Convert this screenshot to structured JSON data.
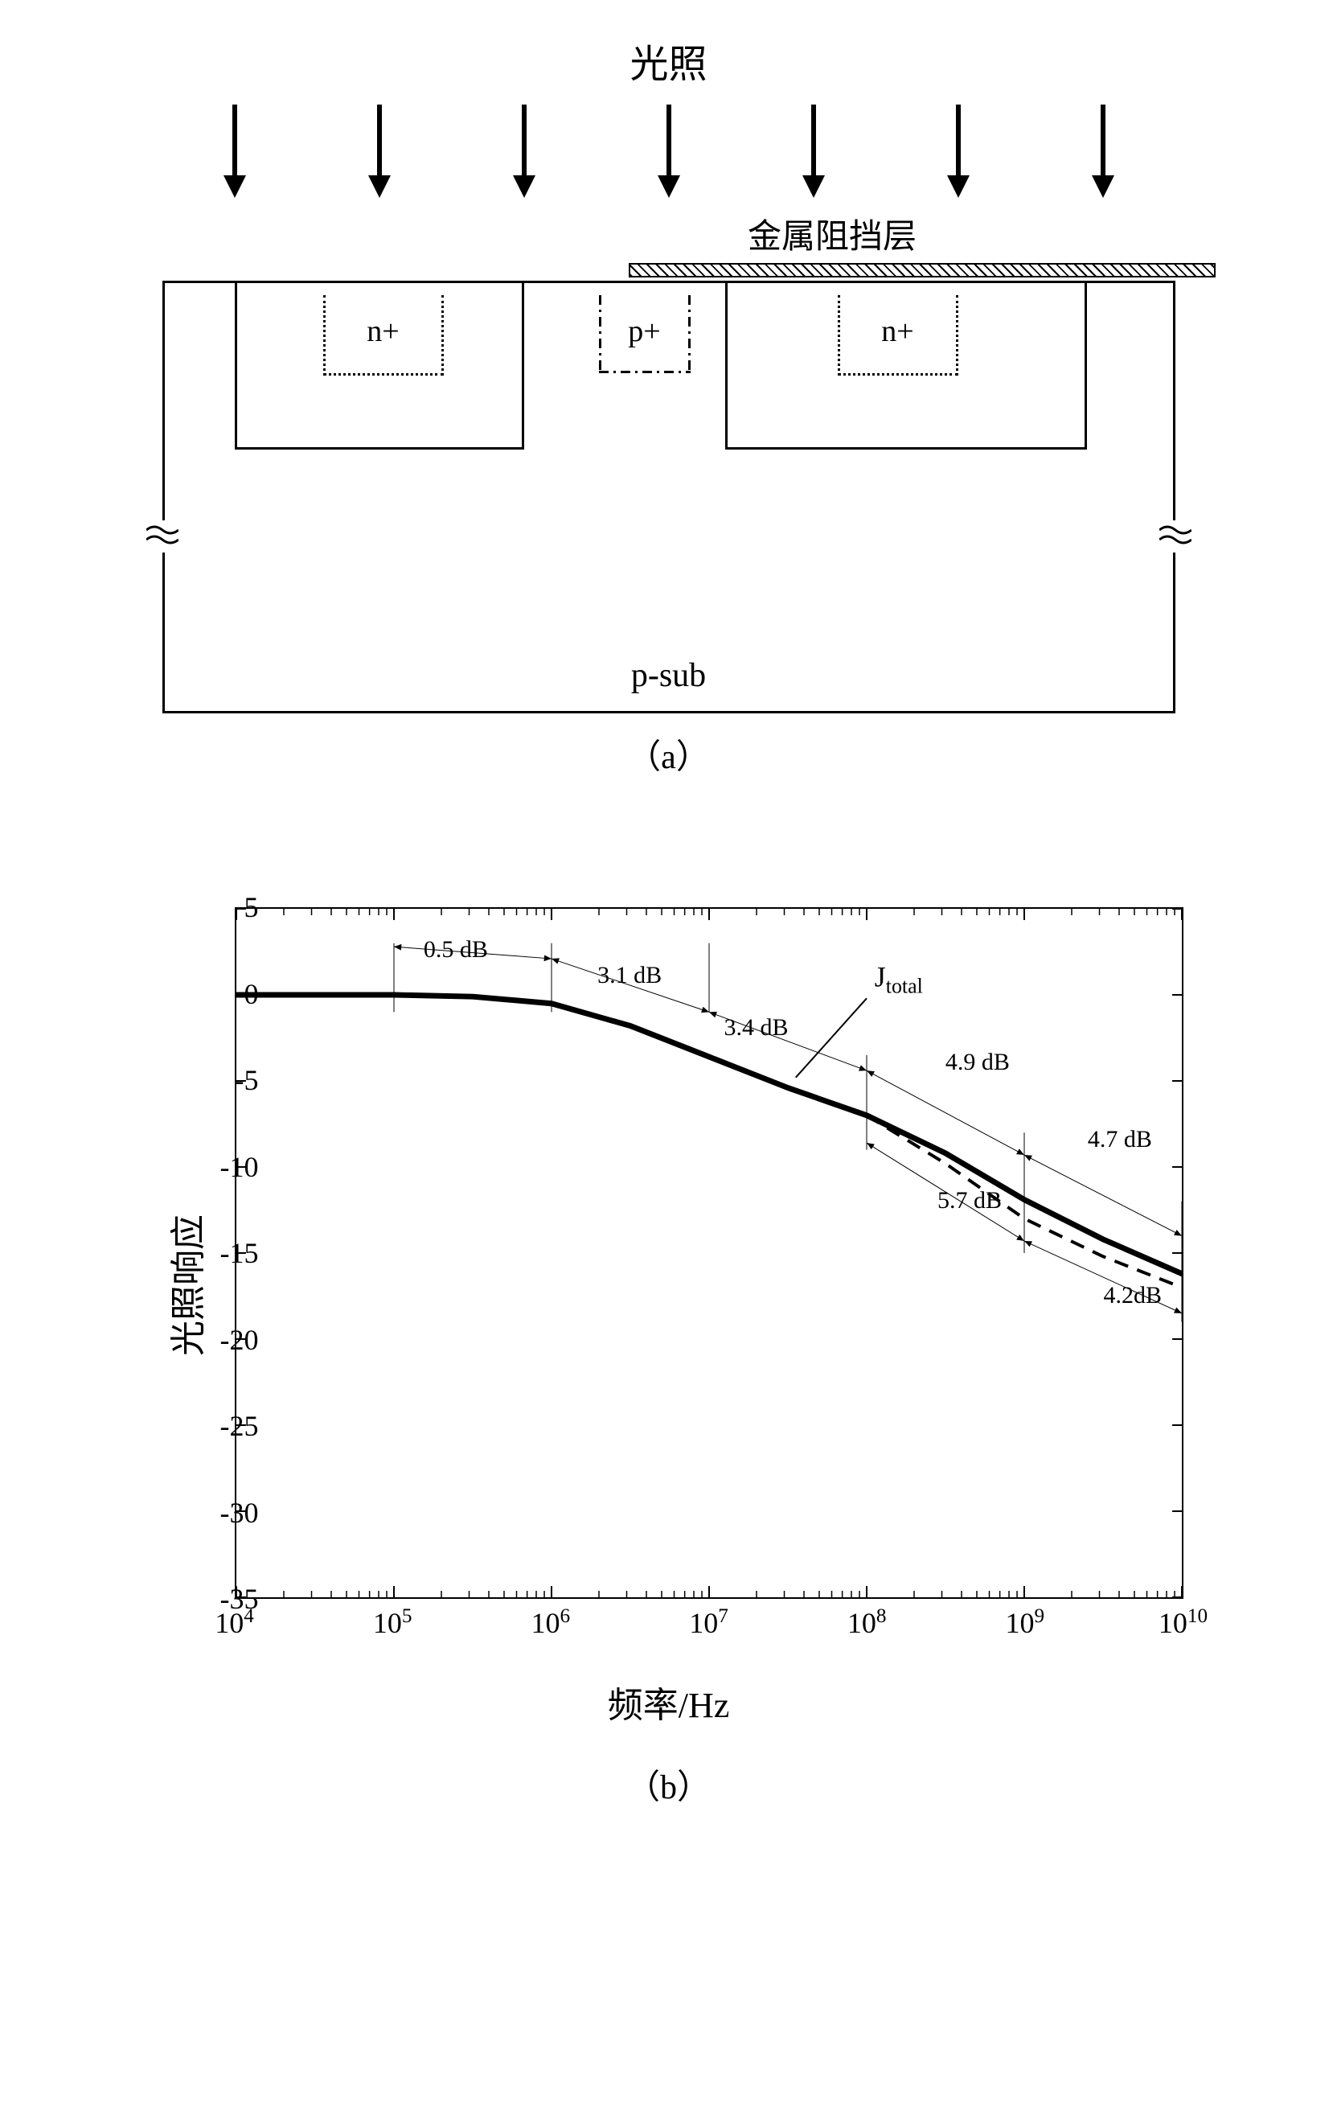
{
  "panel_a": {
    "top_label": "光照",
    "metal_label": "金属阻挡层",
    "nplus_label": "n+",
    "pplus_label": "p+",
    "psub_label": "p-sub",
    "panel_label": "（a）",
    "arrow_count": 7
  },
  "panel_b": {
    "panel_label": "（b）",
    "ylabel": "光照响应",
    "xlabel": "频率/Hz",
    "ylim": [
      -35,
      5
    ],
    "ytick_step": 5,
    "yticks": [
      5,
      0,
      -5,
      -10,
      -15,
      -20,
      -25,
      -30,
      -35
    ],
    "xlim_exp": [
      4,
      10
    ],
    "xticks_exp": [
      4,
      5,
      6,
      7,
      8,
      9,
      10
    ],
    "series_label": "Jtotal",
    "series_label_sub": "total",
    "annotations": [
      {
        "text": "0.5 dB",
        "x_exp": 5.4,
        "y": 2.5
      },
      {
        "text": "3.1 dB",
        "x_exp": 6.5,
        "y": 1.0
      },
      {
        "text": "3.4 dB",
        "x_exp": 7.3,
        "y": -2.0
      },
      {
        "text": "4.9 dB",
        "x_exp": 8.7,
        "y": -4.0
      },
      {
        "text": "4.7 dB",
        "x_exp": 9.6,
        "y": -8.5
      },
      {
        "text": "5.7 dB",
        "x_exp": 8.65,
        "y": -12.0
      },
      {
        "text": "4.2dB",
        "x_exp": 9.7,
        "y": -17.5
      }
    ],
    "curve_main": [
      {
        "x_exp": 4.0,
        "y": 0.0
      },
      {
        "x_exp": 5.0,
        "y": 0.0
      },
      {
        "x_exp": 5.5,
        "y": -0.1
      },
      {
        "x_exp": 6.0,
        "y": -0.5
      },
      {
        "x_exp": 6.5,
        "y": -1.8
      },
      {
        "x_exp": 7.0,
        "y": -3.6
      },
      {
        "x_exp": 7.5,
        "y": -5.4
      },
      {
        "x_exp": 8.0,
        "y": -7.0
      },
      {
        "x_exp": 8.5,
        "y": -9.2
      },
      {
        "x_exp": 9.0,
        "y": -11.9
      },
      {
        "x_exp": 9.5,
        "y": -14.2
      },
      {
        "x_exp": 10.0,
        "y": -16.2
      }
    ],
    "curve_dashed": [
      {
        "x_exp": 8.0,
        "y": -7.0
      },
      {
        "x_exp": 8.5,
        "y": -9.8
      },
      {
        "x_exp": 9.0,
        "y": -13.0
      },
      {
        "x_exp": 9.5,
        "y": -15.2
      },
      {
        "x_exp": 10.0,
        "y": -17.0
      }
    ],
    "guide_lines": [
      {
        "x1_exp": 5.0,
        "y1": 2.8,
        "x2_exp": 6.0,
        "y2": 2.1
      },
      {
        "x1_exp": 6.0,
        "y1": 2.1,
        "x2_exp": 7.0,
        "y2": -1.0
      },
      {
        "x1_exp": 7.0,
        "y1": -1.0,
        "x2_exp": 8.0,
        "y2": -4.4
      },
      {
        "x1_exp": 8.0,
        "y1": -4.4,
        "x2_exp": 9.0,
        "y2": -9.3
      },
      {
        "x1_exp": 9.0,
        "y1": -9.3,
        "x2_exp": 10.0,
        "y2": -14.0
      },
      {
        "x1_exp": 8.0,
        "y1": -8.6,
        "x2_exp": 9.0,
        "y2": -14.3
      },
      {
        "x1_exp": 9.0,
        "y1": -14.3,
        "x2_exp": 10.0,
        "y2": -18.5
      }
    ],
    "vlines_exp": [
      5,
      6,
      7,
      8,
      9,
      10
    ],
    "styling": {
      "main_line_width": 7,
      "dashed_line_width": 4,
      "guide_line_width": 1,
      "axis_color": "#000000",
      "bg_color": "#ffffff",
      "label_fontsize": 44,
      "tick_fontsize": 36,
      "annot_fontsize": 30
    }
  }
}
